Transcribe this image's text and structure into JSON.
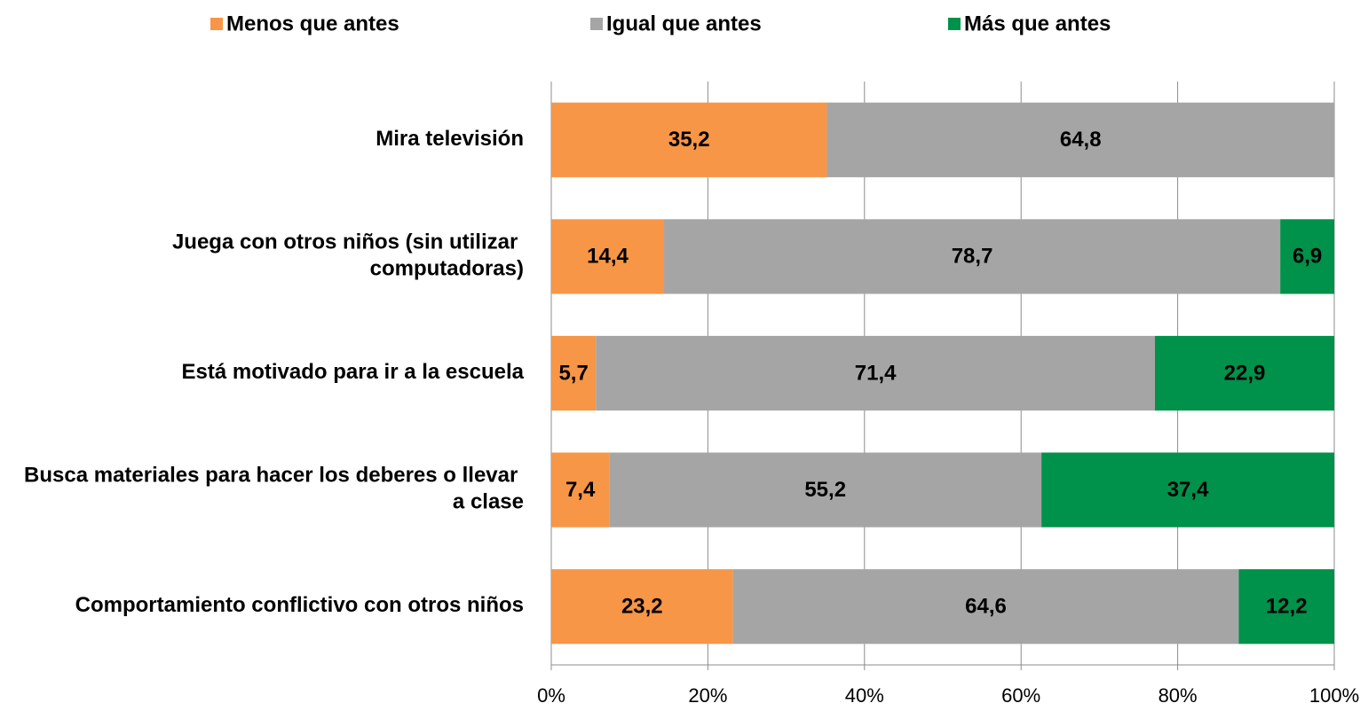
{
  "chart_data": {
    "type": "stacked-barh",
    "categories": [
      "Mira televisión",
      "Juega con otros niños (sin utilizar computadoras)",
      "Está motivado para ir a la escuela",
      "Busca materiales para hacer los deberes o llevar a clase",
      "Comportamiento conflictivo con otros niños"
    ],
    "series": [
      {
        "name": "Menos que antes",
        "color": "#f79646",
        "values": [
          35.2,
          14.4,
          5.7,
          7.4,
          23.2
        ],
        "value_labels": [
          "35,2",
          "14,4",
          "5,7",
          "7,4",
          "23,2"
        ]
      },
      {
        "name": "Igual que antes",
        "color": "#a5a5a5",
        "values": [
          64.8,
          78.7,
          71.4,
          55.2,
          64.6
        ],
        "value_labels": [
          "64,8",
          "78,7",
          "71,4",
          "55,2",
          "64,6"
        ]
      },
      {
        "name": "Más que antes",
        "color": "#00914a",
        "values": [
          null,
          6.9,
          22.9,
          37.4,
          12.2
        ],
        "value_labels": [
          null,
          "6,9",
          "22,9",
          "37,4",
          "12,2"
        ]
      }
    ],
    "xlim": [
      0,
      100
    ],
    "xticks": [
      {
        "value": 0,
        "label": "0%"
      },
      {
        "value": 20,
        "label": "20%"
      },
      {
        "value": 40,
        "label": "40%"
      },
      {
        "value": 60,
        "label": "60%"
      },
      {
        "value": 80,
        "label": "80%"
      },
      {
        "value": 100,
        "label": "100%"
      }
    ],
    "grid": true,
    "legend": "top"
  }
}
